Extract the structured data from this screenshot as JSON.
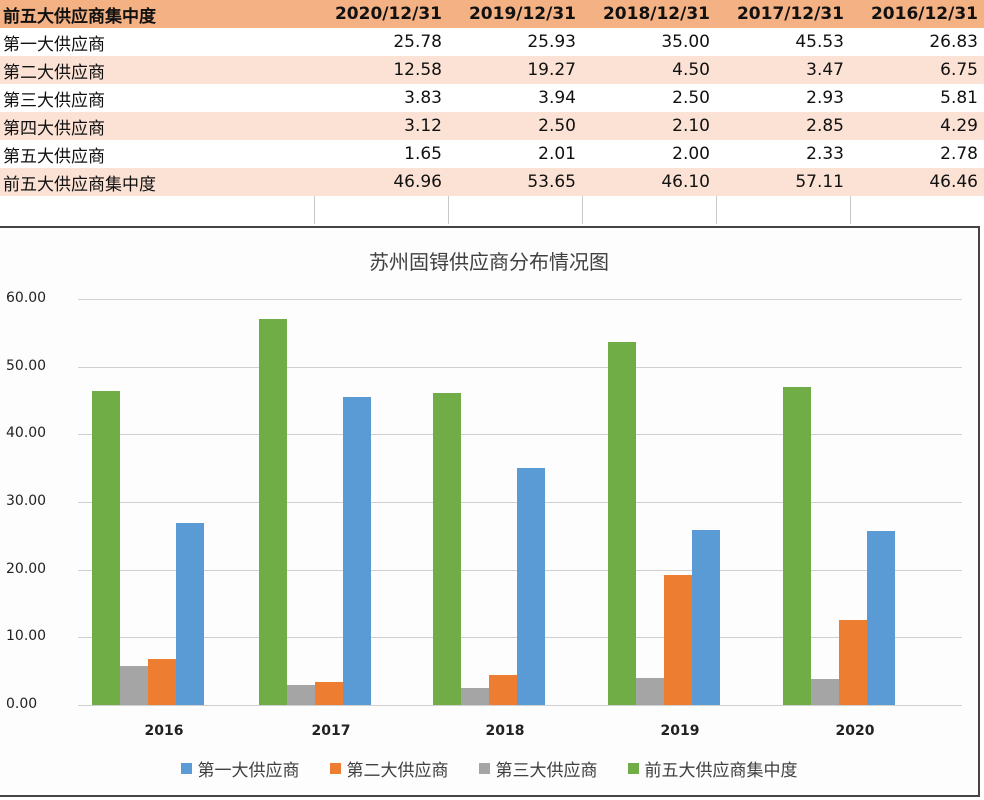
{
  "table": {
    "header": [
      "前五大供应商集中度",
      "2020/12/31",
      "2019/12/31",
      "2018/12/31",
      "2017/12/31",
      "2016/12/31"
    ],
    "rows": [
      {
        "label": "第一大供应商",
        "values": [
          "25.78",
          "25.93",
          "35.00",
          "45.53",
          "26.83"
        ]
      },
      {
        "label": "第二大供应商",
        "values": [
          "12.58",
          "19.27",
          "4.50",
          "3.47",
          "6.75"
        ]
      },
      {
        "label": "第三大供应商",
        "values": [
          "3.83",
          "3.94",
          "2.50",
          "2.93",
          "5.81"
        ]
      },
      {
        "label": "第四大供应商",
        "values": [
          "3.12",
          "2.50",
          "2.10",
          "2.85",
          "4.29"
        ]
      },
      {
        "label": "第五大供应商",
        "values": [
          "1.65",
          "2.01",
          "2.00",
          "2.33",
          "2.78"
        ]
      },
      {
        "label": "前五大供应商集中度",
        "values": [
          "46.96",
          "53.65",
          "46.10",
          "57.11",
          "46.46"
        ]
      }
    ]
  },
  "colors": {
    "header_bg": "#f4b183",
    "alt_row_bg": "#fbe2d5",
    "first_supplier": "#5b9bd5",
    "second_supplier": "#ed7d31",
    "third_supplier": "#a5a5a5",
    "top5_concentration": "#70ad47"
  },
  "chart_data": {
    "type": "bar",
    "title": "苏州固锝供应商分布情况图",
    "categories": [
      "2016",
      "2017",
      "2018",
      "2019",
      "2020"
    ],
    "series": [
      {
        "name": "前五大供应商集中度",
        "color": "#70ad47",
        "values": [
          46.46,
          57.11,
          46.1,
          53.65,
          46.96
        ]
      },
      {
        "name": "第三大供应商",
        "color": "#a5a5a5",
        "values": [
          5.81,
          2.93,
          2.5,
          3.94,
          3.83
        ]
      },
      {
        "name": "第二大供应商",
        "color": "#ed7d31",
        "values": [
          6.75,
          3.47,
          4.5,
          19.27,
          12.58
        ]
      },
      {
        "name": "第一大供应商",
        "color": "#5b9bd5",
        "values": [
          26.83,
          45.53,
          35.0,
          25.93,
          25.78
        ]
      }
    ],
    "legend": [
      "第一大供应商",
      "第二大供应商",
      "第三大供应商",
      "前五大供应商集中度"
    ],
    "legend_position": "bottom",
    "yticks": [
      "60.00",
      "50.00",
      "40.00",
      "30.00",
      "20.00",
      "10.00",
      "0.00"
    ],
    "ylim": [
      0,
      60
    ],
    "grid": true,
    "xlabel": "",
    "ylabel": ""
  }
}
